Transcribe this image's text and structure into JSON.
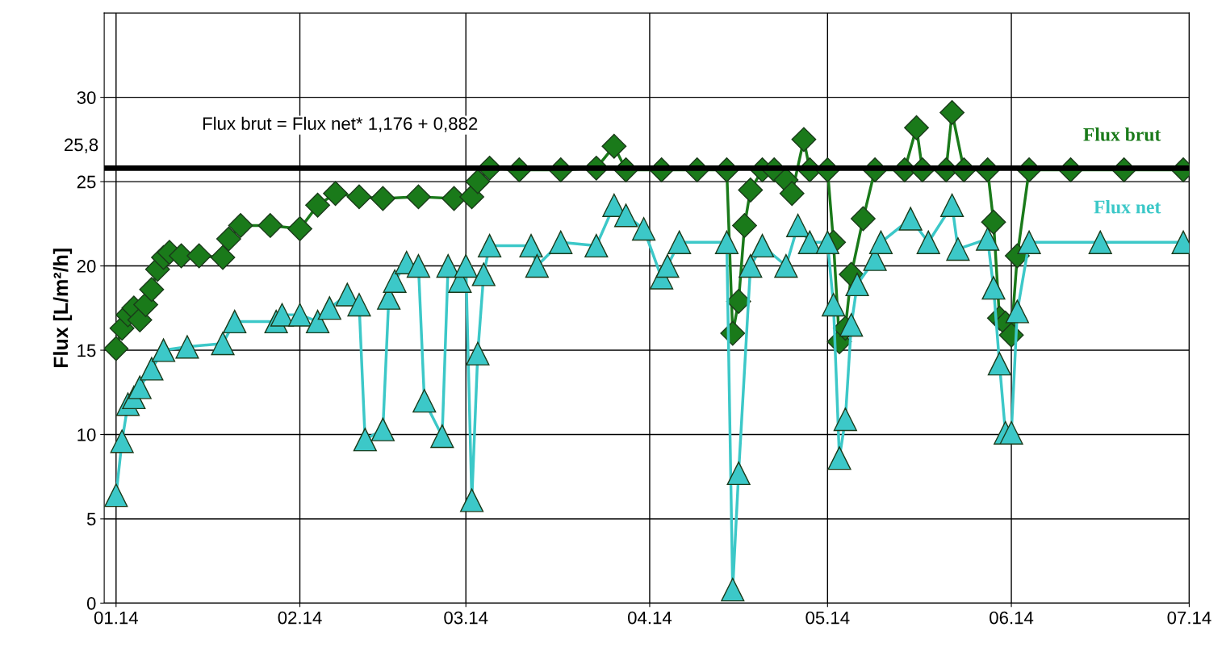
{
  "chart_data": {
    "type": "line",
    "ylabel": "Flux [L/m²/h]",
    "xlim": [
      "2013-12-30",
      "2014-07-01"
    ],
    "xticks": [
      {
        "value": "2014-01-01",
        "label": "01.14"
      },
      {
        "value": "2014-02-01",
        "label": "02.14"
      },
      {
        "value": "2014-03-01",
        "label": "03.14"
      },
      {
        "value": "2014-04-01",
        "label": "04.14"
      },
      {
        "value": "2014-05-01",
        "label": "05.14"
      },
      {
        "value": "2014-06-01",
        "label": "06.14"
      },
      {
        "value": "2014-07-01",
        "label": "07.14"
      }
    ],
    "ylim": [
      0,
      35
    ],
    "yticks": [
      0,
      5,
      10,
      15,
      20,
      25,
      30
    ],
    "grid": true,
    "legend": false,
    "annotations": [
      "Flux brut = Flux net* 1,176 + 0,882"
    ],
    "ref_lines": [
      {
        "axis": "y",
        "value": 25.8,
        "label": "25,8",
        "color": "#000000"
      }
    ],
    "series": [
      {
        "name": "Flux brut",
        "color": "#1a7a1a",
        "marker": "diamond",
        "x": [
          "2014-01-01",
          "2014-01-02",
          "2014-01-03",
          "2014-01-04",
          "2014-01-05",
          "2014-01-06",
          "2014-01-07",
          "2014-01-08",
          "2014-01-09",
          "2014-01-10",
          "2014-01-12",
          "2014-01-15",
          "2014-01-19",
          "2014-01-20",
          "2014-01-22",
          "2014-01-27",
          "2014-02-01",
          "2014-02-04",
          "2014-02-07",
          "2014-02-11",
          "2014-02-15",
          "2014-02-21",
          "2014-02-27",
          "2014-03-02",
          "2014-03-03",
          "2014-03-05",
          "2014-03-10",
          "2014-03-17",
          "2014-03-23",
          "2014-03-26",
          "2014-03-28",
          "2014-04-03",
          "2014-04-09",
          "2014-04-14",
          "2014-04-15",
          "2014-04-16",
          "2014-04-17",
          "2014-04-18",
          "2014-04-20",
          "2014-04-22",
          "2014-04-24",
          "2014-04-25",
          "2014-04-27",
          "2014-04-28",
          "2014-05-01",
          "2014-05-02",
          "2014-05-03",
          "2014-05-04",
          "2014-05-05",
          "2014-05-07",
          "2014-05-09",
          "2014-05-14",
          "2014-05-16",
          "2014-05-17",
          "2014-05-21",
          "2014-05-22",
          "2014-05-24",
          "2014-05-28",
          "2014-05-29",
          "2014-05-30",
          "2014-05-31",
          "2014-06-01",
          "2014-06-02",
          "2014-06-04",
          "2014-06-11",
          "2014-06-20",
          "2014-06-30"
        ],
        "values": [
          15.1,
          16.3,
          17.1,
          17.5,
          16.8,
          17.7,
          18.6,
          19.8,
          20.5,
          20.8,
          20.6,
          20.6,
          20.5,
          21.6,
          22.4,
          22.4,
          22.2,
          23.6,
          24.3,
          24.1,
          24.0,
          24.1,
          24.0,
          24.1,
          25.0,
          25.8,
          25.7,
          25.7,
          25.8,
          27.1,
          25.7,
          25.7,
          25.7,
          25.7,
          16.0,
          17.9,
          22.4,
          24.5,
          25.7,
          25.7,
          25.1,
          24.3,
          27.5,
          25.7,
          25.7,
          21.4,
          15.5,
          16.3,
          19.5,
          22.8,
          25.7,
          25.7,
          28.2,
          25.7,
          25.7,
          29.1,
          25.7,
          25.7,
          22.6,
          16.9,
          16.6,
          15.9,
          20.6,
          25.7,
          25.7,
          25.7,
          25.7
        ]
      },
      {
        "name": "Flux net",
        "color": "#3cc8c8",
        "marker": "triangle",
        "x": [
          "2014-01-01",
          "2014-01-02",
          "2014-01-03",
          "2014-01-04",
          "2014-01-05",
          "2014-01-07",
          "2014-01-09",
          "2014-01-13",
          "2014-01-19",
          "2014-01-21",
          "2014-01-28",
          "2014-01-29",
          "2014-02-01",
          "2014-02-04",
          "2014-02-06",
          "2014-02-09",
          "2014-02-11",
          "2014-02-12",
          "2014-02-15",
          "2014-02-16",
          "2014-02-17",
          "2014-02-19",
          "2014-02-21",
          "2014-02-22",
          "2014-02-25",
          "2014-02-26",
          "2014-02-28",
          "2014-03-01",
          "2014-03-02",
          "2014-03-03",
          "2014-03-04",
          "2014-03-05",
          "2014-03-12",
          "2014-03-13",
          "2014-03-17",
          "2014-03-23",
          "2014-03-26",
          "2014-03-28",
          "2014-03-31",
          "2014-04-03",
          "2014-04-04",
          "2014-04-06",
          "2014-04-14",
          "2014-04-15",
          "2014-04-16",
          "2014-04-18",
          "2014-04-20",
          "2014-04-24",
          "2014-04-26",
          "2014-04-28",
          "2014-05-01",
          "2014-05-02",
          "2014-05-03",
          "2014-05-04",
          "2014-05-05",
          "2014-05-06",
          "2014-05-09",
          "2014-05-10",
          "2014-05-15",
          "2014-05-18",
          "2014-05-22",
          "2014-05-23",
          "2014-05-28",
          "2014-05-29",
          "2014-05-30",
          "2014-05-31",
          "2014-06-01",
          "2014-06-02",
          "2014-06-04",
          "2014-06-16",
          "2014-06-30"
        ],
        "values": [
          6.4,
          9.6,
          11.8,
          12.2,
          12.8,
          13.9,
          15.0,
          15.2,
          15.4,
          16.7,
          16.7,
          17.1,
          17.1,
          16.7,
          17.5,
          18.3,
          17.7,
          9.7,
          10.3,
          18.1,
          19.1,
          20.2,
          20.0,
          12.0,
          9.9,
          20.0,
          19.1,
          20.0,
          6.1,
          14.8,
          19.5,
          21.2,
          21.2,
          20.0,
          21.4,
          21.2,
          23.6,
          23.0,
          22.2,
          19.3,
          20.0,
          21.4,
          21.4,
          0.8,
          7.7,
          20.0,
          21.2,
          20.0,
          22.4,
          21.4,
          21.4,
          17.7,
          8.6,
          10.9,
          16.5,
          18.9,
          20.4,
          21.4,
          22.8,
          21.4,
          23.6,
          21.0,
          21.6,
          18.7,
          14.2,
          10.1,
          10.1,
          17.3,
          21.4,
          21.4,
          21.4
        ]
      }
    ]
  }
}
